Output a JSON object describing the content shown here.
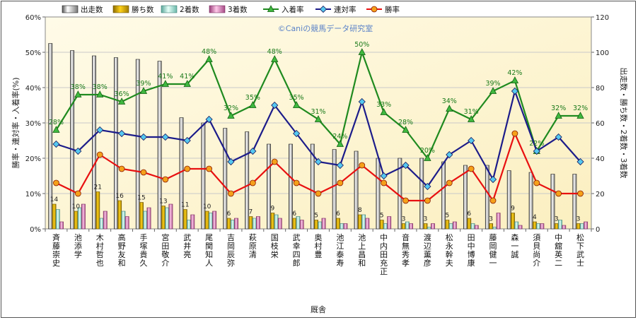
{
  "chart_data": {
    "type": "bar",
    "watermark": "©Caniの競馬データ研究室",
    "xlabel": "厩舎",
    "ylabel_left": "勝率・連対率・入着率(%)",
    "ylabel_right": "出走数・勝ち数・2着数・3着数",
    "ylim_left": [
      0,
      60
    ],
    "ylim_right": [
      0,
      120
    ],
    "yticks_left": [
      "0%",
      "10%",
      "20%",
      "30%",
      "40%",
      "50%",
      "60%"
    ],
    "yticks_right": [
      "0",
      "20",
      "40",
      "60",
      "80",
      "100",
      "120"
    ],
    "legend_position": "top",
    "grid": true,
    "categories": [
      "斉藤 崇史",
      "池添 学",
      "木村 哲也",
      "高野 友和",
      "手塚 貴久",
      "宮田 敬介",
      "武井 亮",
      "尾関 知人",
      "吉岡 辰弥",
      "萩原 清",
      "国枝 栄",
      "武 幸四郎",
      "奥村 豊",
      "池江 泰寿",
      "池上 昌和",
      "中内田 充正",
      "音無 秀孝",
      "渡辺 薫彦",
      "松永 幹夫",
      "田中 博康",
      "藤岡 健一",
      "森 一誠",
      "須貝 尚介",
      "中舘 英二",
      "松下 武士"
    ],
    "series": [
      {
        "name": "出走数",
        "axis": "right",
        "kind": "bar",
        "color": "#ffffff",
        "values": [
          105,
          101,
          98,
          97,
          96,
          95,
          63,
          60,
          57,
          55,
          48,
          48,
          48,
          45,
          44,
          40,
          40,
          40,
          38,
          36,
          36,
          33,
          32,
          31,
          31
        ]
      },
      {
        "name": "勝ち数",
        "axis": "right",
        "kind": "bar",
        "color": "#e8b400",
        "values": [
          14,
          10,
          21,
          16,
          15,
          13,
          11,
          10,
          6,
          7,
          9,
          6,
          5,
          6,
          8,
          5,
          3,
          3,
          5,
          6,
          3,
          9,
          4,
          3,
          3
        ]
      },
      {
        "name": "2着数",
        "axis": "right",
        "kind": "bar",
        "color": "#b8eadf",
        "values": [
          11,
          12,
          6,
          10,
          10,
          12,
          5,
          9,
          5,
          6,
          8,
          7,
          4,
          3,
          8,
          3,
          4,
          1,
          3,
          3,
          1,
          4,
          3,
          5,
          3
        ]
      },
      {
        "name": "3着数",
        "axis": "right",
        "kind": "bar",
        "color": "#e59ac8",
        "values": [
          4,
          14,
          10,
          7,
          12,
          14,
          8,
          10,
          6,
          7,
          6,
          5,
          6,
          3,
          6,
          7,
          3,
          3,
          4,
          2,
          9,
          2,
          3,
          2,
          4
        ]
      },
      {
        "name": "入着率",
        "axis": "left",
        "kind": "line",
        "color": "#1f8a1f",
        "marker": "triangle",
        "values": [
          28,
          38,
          38,
          36,
          39,
          41,
          41,
          48,
          32,
          35,
          48,
          35,
          31,
          24,
          50,
          33,
          28,
          20,
          34,
          31,
          39,
          42,
          22,
          32,
          32
        ]
      },
      {
        "name": "連対率",
        "axis": "left",
        "kind": "line",
        "color": "#1c1c8a",
        "marker": "diamond",
        "values": [
          24,
          22,
          28,
          27,
          26,
          26,
          25,
          31,
          19,
          22,
          35,
          27,
          19,
          18,
          36,
          15,
          18,
          12,
          21,
          25,
          14,
          39,
          22,
          26,
          19
        ]
      },
      {
        "name": "勝率",
        "axis": "left",
        "kind": "line",
        "color": "#e81010",
        "marker": "circle",
        "values": [
          13,
          10,
          21,
          17,
          16,
          14,
          17,
          17,
          10,
          13,
          19,
          13,
          10,
          13,
          18,
          13,
          8,
          8,
          13,
          17,
          8,
          27,
          13,
          10,
          10
        ]
      }
    ],
    "labels_on_chart": {
      "入着率": [
        "28%",
        "38%",
        "38%",
        "36%",
        "39%",
        "41%",
        "41%",
        "48%",
        "32%",
        "35%",
        "48%",
        "35%",
        "31%",
        "24%",
        "50%",
        "33%",
        "28%",
        "20%",
        "34%",
        "31%",
        "39%",
        "42%",
        "22%",
        "32%",
        "32%"
      ],
      "勝ち数": [
        "14",
        "10",
        "21",
        "16",
        "15",
        "13",
        "11",
        "10",
        "6",
        "7",
        "9",
        "6",
        "5",
        "6",
        "8",
        "5",
        "3",
        "3",
        "5",
        "6",
        "3",
        "9",
        "4",
        "3",
        "3"
      ]
    }
  }
}
